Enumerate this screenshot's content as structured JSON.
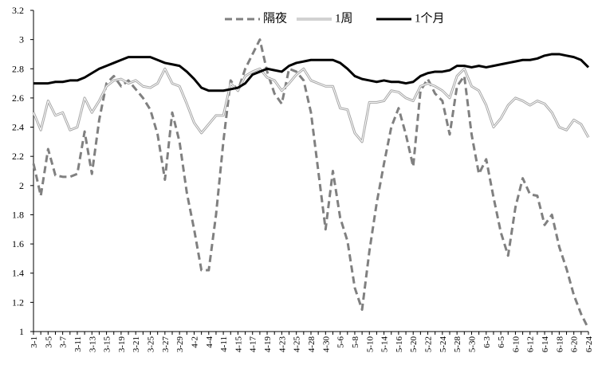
{
  "chart_data": {
    "type": "line",
    "categories": [
      "3-1",
      null,
      "3-5",
      null,
      "3-7",
      null,
      "3-11",
      null,
      "3-13",
      null,
      "3-15",
      null,
      "3-19",
      null,
      "3-21",
      null,
      "3-25",
      null,
      "3-27",
      null,
      "3-29",
      null,
      "4-2",
      null,
      "4-4",
      null,
      "4-11",
      null,
      "4-15",
      null,
      "4-17",
      null,
      "4-19",
      null,
      "4-23",
      null,
      "4-25",
      null,
      "4-28",
      null,
      "4-30",
      null,
      "5-6",
      null,
      "5-8",
      null,
      "5-10",
      null,
      "5-14",
      null,
      "5-16",
      null,
      "5-20",
      null,
      "5-22",
      null,
      "5-24",
      null,
      "5-28",
      null,
      "5-30",
      null,
      "6-3",
      null,
      "6-5",
      null,
      "6-10",
      null,
      "6-12",
      null,
      "6-14",
      null,
      "6-18",
      null,
      "6-20",
      null,
      "6-24"
    ],
    "series": [
      {
        "name": "隔夜",
        "color": "#808080",
        "style": "dashed",
        "values": [
          2.15,
          1.93,
          2.25,
          2.07,
          2.06,
          2.06,
          2.08,
          2.37,
          2.08,
          2.45,
          2.7,
          2.75,
          2.68,
          2.72,
          2.66,
          2.6,
          2.52,
          2.35,
          2.04,
          2.5,
          2.3,
          1.95,
          1.7,
          1.42,
          1.42,
          1.8,
          2.3,
          2.72,
          2.65,
          2.8,
          2.9,
          3.0,
          2.78,
          2.63,
          2.56,
          2.8,
          2.78,
          2.72,
          2.5,
          2.1,
          1.7,
          2.1,
          1.78,
          1.62,
          1.3,
          1.15,
          1.55,
          1.88,
          2.15,
          2.4,
          2.53,
          2.35,
          2.13,
          2.65,
          2.73,
          2.63,
          2.58,
          2.35,
          2.68,
          2.75,
          2.35,
          2.08,
          2.18,
          1.92,
          1.68,
          1.52,
          1.85,
          2.05,
          1.94,
          1.93,
          1.73,
          1.8,
          1.58,
          1.43,
          1.25,
          1.12,
          1.02
        ]
      },
      {
        "name": "1周",
        "color": "#a6a6a6",
        "style": "double",
        "values": [
          2.5,
          2.38,
          2.58,
          2.48,
          2.5,
          2.38,
          2.4,
          2.6,
          2.5,
          2.58,
          2.68,
          2.72,
          2.73,
          2.7,
          2.72,
          2.68,
          2.67,
          2.7,
          2.8,
          2.7,
          2.68,
          2.56,
          2.43,
          2.36,
          2.42,
          2.48,
          2.48,
          2.7,
          2.65,
          2.75,
          2.78,
          2.8,
          2.74,
          2.72,
          2.65,
          2.7,
          2.76,
          2.8,
          2.72,
          2.7,
          2.68,
          2.68,
          2.53,
          2.52,
          2.36,
          2.3,
          2.57,
          2.57,
          2.58,
          2.65,
          2.64,
          2.6,
          2.58,
          2.68,
          2.7,
          2.68,
          2.65,
          2.6,
          2.75,
          2.8,
          2.68,
          2.65,
          2.55,
          2.4,
          2.46,
          2.55,
          2.6,
          2.58,
          2.55,
          2.58,
          2.56,
          2.5,
          2.4,
          2.38,
          2.45,
          2.42,
          2.33
        ]
      },
      {
        "name": "1个月",
        "color": "#000000",
        "style": "solid",
        "values": [
          2.7,
          2.7,
          2.7,
          2.71,
          2.71,
          2.72,
          2.72,
          2.74,
          2.77,
          2.8,
          2.82,
          2.84,
          2.86,
          2.88,
          2.88,
          2.88,
          2.88,
          2.86,
          2.84,
          2.83,
          2.82,
          2.78,
          2.73,
          2.67,
          2.65,
          2.65,
          2.65,
          2.66,
          2.67,
          2.7,
          2.76,
          2.78,
          2.8,
          2.79,
          2.78,
          2.82,
          2.84,
          2.85,
          2.86,
          2.86,
          2.86,
          2.86,
          2.84,
          2.8,
          2.75,
          2.73,
          2.72,
          2.71,
          2.72,
          2.71,
          2.71,
          2.7,
          2.71,
          2.75,
          2.77,
          2.78,
          2.78,
          2.79,
          2.82,
          2.82,
          2.81,
          2.82,
          2.81,
          2.82,
          2.83,
          2.84,
          2.85,
          2.86,
          2.86,
          2.87,
          2.89,
          2.9,
          2.9,
          2.89,
          2.88,
          2.86,
          2.81
        ]
      }
    ],
    "ylim": [
      1,
      3.2
    ],
    "yticks": [
      1,
      1.2,
      1.4,
      1.6,
      1.8,
      2,
      2.2,
      2.4,
      2.6,
      2.8,
      3,
      3.2
    ],
    "legend": "top"
  }
}
